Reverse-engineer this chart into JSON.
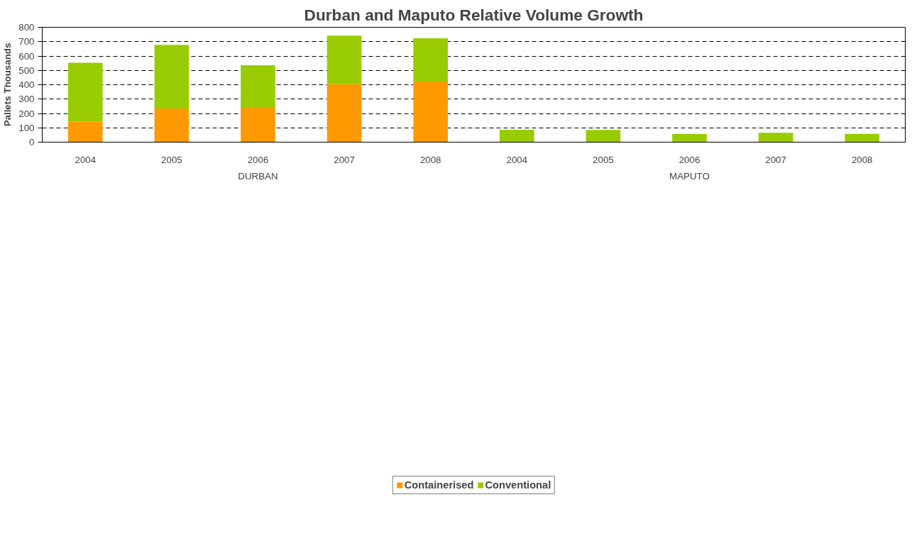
{
  "chart_data": {
    "type": "bar",
    "title": "Durban and Maputo Relative Volume Growth",
    "ylabel": "Pallets Thousands",
    "categories": [
      "2004",
      "2005",
      "2006",
      "2007",
      "2008",
      "2004",
      "2005",
      "2006",
      "2007",
      "2008"
    ],
    "annotations": [
      "DURBAN",
      "MAPUTO"
    ],
    "stacked": true,
    "series": [
      {
        "name": "Containerised",
        "color": "#ff9900",
        "values": [
          143,
          234,
          244,
          404,
          422,
          0,
          1,
          0,
          0,
          0
        ]
      },
      {
        "name": "Conventional",
        "color": "#99cc00",
        "values": [
          410,
          444,
          292,
          338,
          301,
          87,
          84,
          57,
          66,
          58
        ]
      }
    ],
    "ylim": [
      0,
      800
    ],
    "yticks": [
      0,
      100,
      200,
      300,
      400,
      500,
      600,
      700,
      800
    ],
    "grid": "y",
    "legend": "bottom"
  }
}
